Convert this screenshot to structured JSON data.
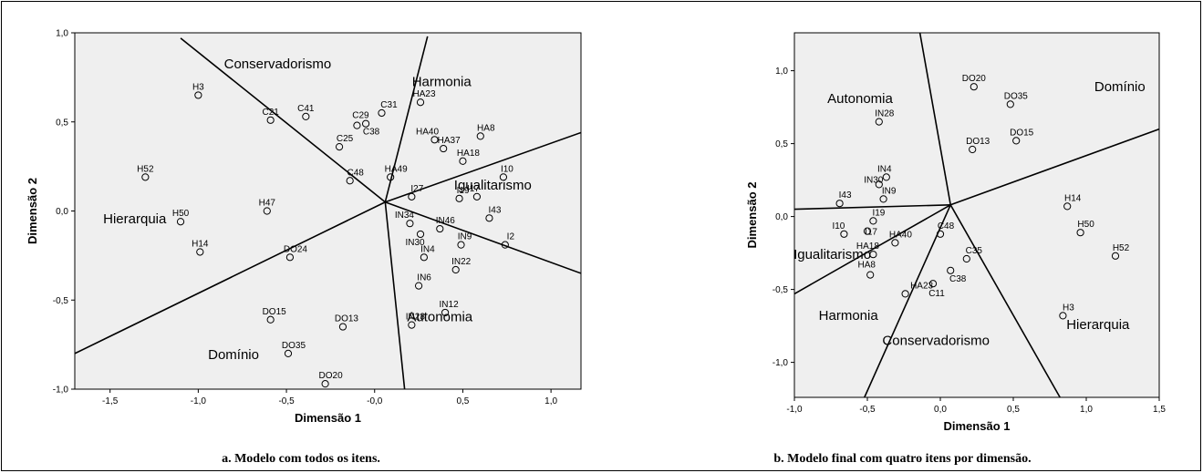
{
  "panel_colors": {
    "plot_bg": "#efefef",
    "axis": "#000000",
    "point": "#000000"
  },
  "captions": {
    "a": "a. Modelo com todos os itens.",
    "b": "b. Modelo final com quatro itens por dimensão."
  },
  "chart_data": [
    {
      "type": "scatter",
      "title": "",
      "xlabel": "Dimensão 1",
      "ylabel": "Dimensão 2",
      "xlim": [
        -1.7,
        1.17
      ],
      "ylim": [
        -1.0,
        1.0
      ],
      "xticks": [
        -1.5,
        -1.0,
        -0.5,
        0.0,
        0.5,
        1.0
      ],
      "xtick_labels": [
        "-1,5",
        "-1,0",
        "-0,5",
        "-0,0",
        "0,5",
        "1,0"
      ],
      "yticks": [
        -1.0,
        -0.5,
        0.0,
        0.5,
        1.0
      ],
      "ytick_labels": [
        "-1,0",
        "-0,5",
        "0,0",
        "0,5",
        "1,0"
      ],
      "center": [
        0.06,
        0.05
      ],
      "partition_lines": [
        {
          "to": [
            -1.1,
            0.97
          ]
        },
        {
          "to": [
            0.3,
            0.98
          ]
        },
        {
          "to": [
            1.17,
            0.44
          ]
        },
        {
          "to": [
            1.17,
            -0.35
          ]
        },
        {
          "to": [
            0.17,
            -1.0
          ]
        },
        {
          "to": [
            -1.7,
            -0.8
          ]
        }
      ],
      "region_labels": [
        {
          "text": "Conservadorismo",
          "x": -0.55,
          "y": 0.8
        },
        {
          "text": "Harmonia",
          "x": 0.38,
          "y": 0.7
        },
        {
          "text": "Igualitarismo",
          "x": 0.67,
          "y": 0.12
        },
        {
          "text": "Autonomia",
          "x": 0.37,
          "y": -0.62
        },
        {
          "text": "Domínio",
          "x": -0.8,
          "y": -0.83
        },
        {
          "text": "Hierarquia",
          "x": -1.36,
          "y": -0.07
        }
      ],
      "points": [
        {
          "label": "H3",
          "x": -1.0,
          "y": 0.65,
          "dx": 0,
          "dy": -6
        },
        {
          "label": "H52",
          "x": -1.3,
          "y": 0.19,
          "dx": 0,
          "dy": -6
        },
        {
          "label": "H50",
          "x": -1.1,
          "y": -0.06,
          "dx": 0,
          "dy": -6
        },
        {
          "label": "H14",
          "x": -0.99,
          "y": -0.23,
          "dx": 0,
          "dy": -6
        },
        {
          "label": "H47",
          "x": -0.61,
          "y": 0.0,
          "dx": 0,
          "dy": -6
        },
        {
          "label": "C21",
          "x": -0.59,
          "y": 0.51,
          "dx": 0,
          "dy": -6
        },
        {
          "label": "C41",
          "x": -0.39,
          "y": 0.53,
          "dx": 0,
          "dy": -6
        },
        {
          "label": "C29",
          "x": -0.1,
          "y": 0.48,
          "dx": 4,
          "dy": -8
        },
        {
          "label": "C31",
          "x": 0.04,
          "y": 0.55,
          "dx": 8,
          "dy": -6
        },
        {
          "label": "C25",
          "x": -0.2,
          "y": 0.36,
          "dx": 6,
          "dy": -6
        },
        {
          "label": "C38",
          "x": -0.05,
          "y": 0.49,
          "dx": 6,
          "dy": 12
        },
        {
          "label": "C48",
          "x": -0.14,
          "y": 0.17,
          "dx": 6,
          "dy": -6
        },
        {
          "label": "HA23",
          "x": 0.26,
          "y": 0.61,
          "dx": 4,
          "dy": -6
        },
        {
          "label": "HA40",
          "x": 0.34,
          "y": 0.4,
          "dx": -8,
          "dy": -6
        },
        {
          "label": "HA37",
          "x": 0.39,
          "y": 0.35,
          "dx": 6,
          "dy": -6
        },
        {
          "label": "HA8",
          "x": 0.6,
          "y": 0.42,
          "dx": 6,
          "dy": -6
        },
        {
          "label": "HA18",
          "x": 0.5,
          "y": 0.28,
          "dx": 6,
          "dy": -6
        },
        {
          "label": "HA49",
          "x": 0.09,
          "y": 0.19,
          "dx": 6,
          "dy": -6
        },
        {
          "label": "I27",
          "x": 0.21,
          "y": 0.08,
          "dx": 6,
          "dy": -6
        },
        {
          "label": "I19",
          "x": 0.48,
          "y": 0.07,
          "dx": 4,
          "dy": -6
        },
        {
          "label": "I17",
          "x": 0.58,
          "y": 0.08,
          "dx": -4,
          "dy": -6
        },
        {
          "label": "I10",
          "x": 0.73,
          "y": 0.19,
          "dx": 4,
          "dy": -6
        },
        {
          "label": "I43",
          "x": 0.65,
          "y": -0.04,
          "dx": 6,
          "dy": -6
        },
        {
          "label": "I2",
          "x": 0.74,
          "y": -0.19,
          "dx": 6,
          "dy": -6
        },
        {
          "label": "IN34",
          "x": 0.2,
          "y": -0.07,
          "dx": -6,
          "dy": -6
        },
        {
          "label": "IN46",
          "x": 0.37,
          "y": -0.1,
          "dx": 6,
          "dy": -6
        },
        {
          "label": "IN30",
          "x": 0.26,
          "y": -0.13,
          "dx": -6,
          "dy": 12
        },
        {
          "label": "IN9",
          "x": 0.49,
          "y": -0.19,
          "dx": 4,
          "dy": -6
        },
        {
          "label": "IN4",
          "x": 0.28,
          "y": -0.26,
          "dx": 4,
          "dy": -6
        },
        {
          "label": "IN22",
          "x": 0.46,
          "y": -0.33,
          "dx": 6,
          "dy": -6
        },
        {
          "label": "IN6",
          "x": 0.25,
          "y": -0.42,
          "dx": 6,
          "dy": -6
        },
        {
          "label": "IN12",
          "x": 0.4,
          "y": -0.57,
          "dx": 4,
          "dy": -6
        },
        {
          "label": "IN28",
          "x": 0.21,
          "y": -0.64,
          "dx": 4,
          "dy": -6
        },
        {
          "label": "DO24",
          "x": -0.48,
          "y": -0.26,
          "dx": 6,
          "dy": -6
        },
        {
          "label": "DO15",
          "x": -0.59,
          "y": -0.61,
          "dx": 4,
          "dy": -6
        },
        {
          "label": "DO13",
          "x": -0.18,
          "y": -0.65,
          "dx": 4,
          "dy": -6
        },
        {
          "label": "DO35",
          "x": -0.49,
          "y": -0.8,
          "dx": 6,
          "dy": -6
        },
        {
          "label": "DO20",
          "x": -0.28,
          "y": -0.97,
          "dx": 6,
          "dy": -6
        }
      ]
    },
    {
      "type": "scatter",
      "title": "",
      "xlabel": "Dimensão 1",
      "ylabel": "Dimensão 2",
      "xlim": [
        -1.0,
        1.5
      ],
      "ylim": [
        -1.24,
        1.26
      ],
      "xticks": [
        -1.0,
        -0.5,
        0.0,
        0.5,
        1.0,
        1.5
      ],
      "xtick_labels": [
        "-1,0",
        "-0,5",
        "0,0",
        "0,5",
        "1,0",
        "1,5"
      ],
      "yticks": [
        -1.0,
        -0.5,
        0.0,
        0.5,
        1.0
      ],
      "ytick_labels": [
        "-1,0",
        "-0,5",
        "0,0",
        "0,5",
        "1,0"
      ],
      "center": [
        0.07,
        0.08
      ],
      "partition_lines": [
        {
          "to": [
            -0.14,
            1.26
          ]
        },
        {
          "to": [
            1.5,
            0.6
          ]
        },
        {
          "to": [
            0.82,
            -1.24
          ]
        },
        {
          "to": [
            -0.52,
            -1.24
          ]
        },
        {
          "to": [
            -1.0,
            -0.53
          ]
        },
        {
          "to": [
            -1.0,
            0.05
          ]
        }
      ],
      "region_labels": [
        {
          "text": "Autonomia",
          "x": -0.55,
          "y": 0.78
        },
        {
          "text": "Domínio",
          "x": 1.23,
          "y": 0.86
        },
        {
          "text": "Igualitarismo",
          "x": -0.74,
          "y": -0.29
        },
        {
          "text": "Harmonia",
          "x": -0.63,
          "y": -0.71
        },
        {
          "text": "Conservadorismo",
          "x": -0.03,
          "y": -0.88
        },
        {
          "text": "Hierarquia",
          "x": 1.08,
          "y": -0.77
        }
      ],
      "points": [
        {
          "label": "DO20",
          "x": 0.23,
          "y": 0.89,
          "dx": 0,
          "dy": -6
        },
        {
          "label": "DO35",
          "x": 0.48,
          "y": 0.77,
          "dx": 6,
          "dy": -6
        },
        {
          "label": "DO13",
          "x": 0.22,
          "y": 0.46,
          "dx": 6,
          "dy": -6
        },
        {
          "label": "DO15",
          "x": 0.52,
          "y": 0.52,
          "dx": 6,
          "dy": -6
        },
        {
          "label": "IN28",
          "x": -0.42,
          "y": 0.65,
          "dx": 6,
          "dy": -6
        },
        {
          "label": "IN4",
          "x": -0.37,
          "y": 0.27,
          "dx": -2,
          "dy": -6
        },
        {
          "label": "IN30",
          "x": -0.42,
          "y": 0.22,
          "dx": -6,
          "dy": -2
        },
        {
          "label": "IN9",
          "x": -0.39,
          "y": 0.12,
          "dx": 6,
          "dy": -6
        },
        {
          "label": "I43",
          "x": -0.69,
          "y": 0.09,
          "dx": 6,
          "dy": -6
        },
        {
          "label": "I19",
          "x": -0.46,
          "y": -0.03,
          "dx": 6,
          "dy": -6
        },
        {
          "label": "I10",
          "x": -0.66,
          "y": -0.12,
          "dx": -6,
          "dy": -6
        },
        {
          "label": "I17",
          "x": -0.5,
          "y": -0.1,
          "dx": 4,
          "dy": 4
        },
        {
          "label": "HA40",
          "x": -0.31,
          "y": -0.18,
          "dx": 6,
          "dy": -6
        },
        {
          "label": "HA18",
          "x": -0.46,
          "y": -0.26,
          "dx": -6,
          "dy": -6
        },
        {
          "label": "HA8",
          "x": -0.48,
          "y": -0.4,
          "dx": -4,
          "dy": -8
        },
        {
          "label": "HA23",
          "x": -0.24,
          "y": -0.53,
          "dx": 18,
          "dy": -6
        },
        {
          "label": "C48",
          "x": 0.0,
          "y": -0.12,
          "dx": 6,
          "dy": -6
        },
        {
          "label": "C35",
          "x": 0.18,
          "y": -0.29,
          "dx": 8,
          "dy": -6
        },
        {
          "label": "C38",
          "x": 0.07,
          "y": -0.37,
          "dx": 8,
          "dy": 12
        },
        {
          "label": "C11",
          "x": -0.05,
          "y": -0.46,
          "dx": 4,
          "dy": 14
        },
        {
          "label": "H14",
          "x": 0.87,
          "y": 0.07,
          "dx": 6,
          "dy": -6
        },
        {
          "label": "H50",
          "x": 0.96,
          "y": -0.11,
          "dx": 6,
          "dy": -6
        },
        {
          "label": "H52",
          "x": 1.2,
          "y": -0.27,
          "dx": 6,
          "dy": -6
        },
        {
          "label": "H3",
          "x": 0.84,
          "y": -0.68,
          "dx": 6,
          "dy": -6
        }
      ]
    }
  ]
}
